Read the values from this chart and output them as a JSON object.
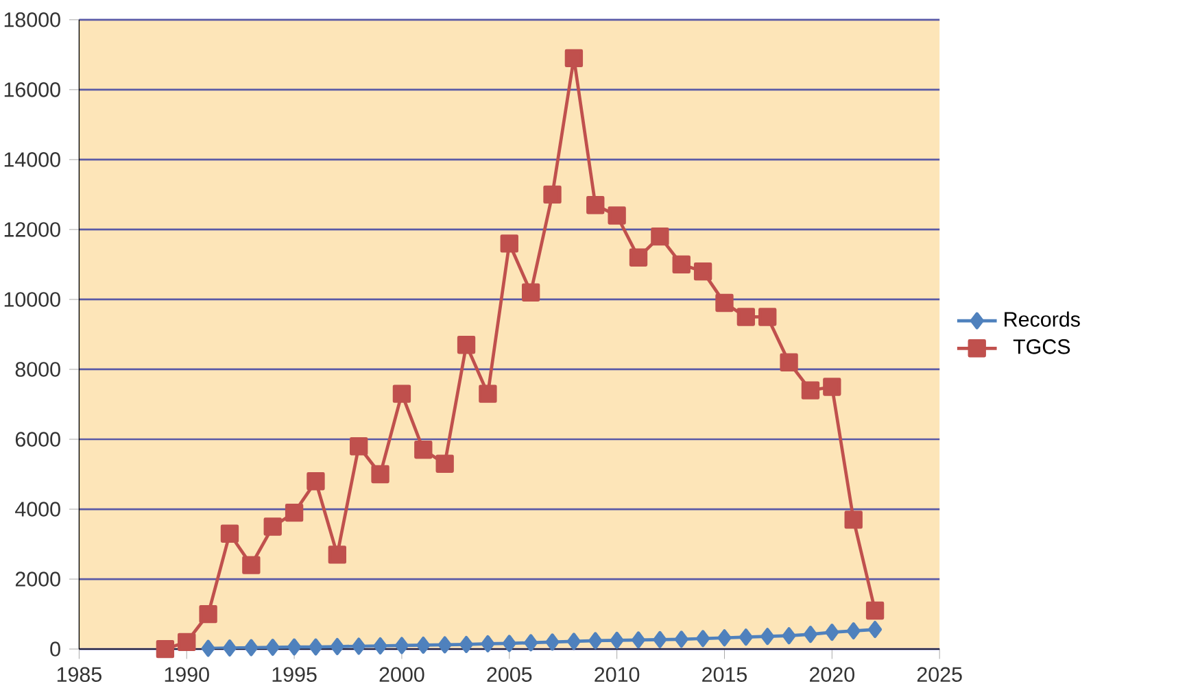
{
  "chart_data": {
    "type": "line",
    "xlim": [
      1985,
      2025
    ],
    "xticks": [
      1985,
      1990,
      1995,
      2000,
      2005,
      2010,
      2015,
      2020,
      2025
    ],
    "ylim": [
      0,
      18000
    ],
    "yticks": [
      0,
      2000,
      4000,
      6000,
      8000,
      10000,
      12000,
      14000,
      16000,
      18000
    ],
    "grid": "y",
    "legend": "right",
    "series": [
      {
        "name": "Records",
        "color": "#4f81bd",
        "marker": "diamond",
        "x": [
          1991,
          1992,
          1993,
          1994,
          1995,
          1996,
          1997,
          1998,
          1999,
          2000,
          2001,
          2002,
          2003,
          2004,
          2005,
          2006,
          2007,
          2008,
          2009,
          2010,
          2011,
          2012,
          2013,
          2014,
          2015,
          2016,
          2017,
          2018,
          2019,
          2020,
          2021,
          2022
        ],
        "values": [
          20,
          30,
          40,
          50,
          60,
          60,
          70,
          80,
          90,
          100,
          110,
          120,
          130,
          150,
          160,
          180,
          200,
          220,
          240,
          250,
          260,
          270,
          280,
          300,
          320,
          340,
          360,
          380,
          420,
          480,
          520,
          560
        ]
      },
      {
        "name": "TGCS",
        "color": "#c0504d",
        "marker": "square",
        "x": [
          1989,
          1990,
          1991,
          1992,
          1993,
          1994,
          1995,
          1996,
          1997,
          1998,
          1999,
          2000,
          2001,
          2002,
          2003,
          2004,
          2005,
          2006,
          2007,
          2008,
          2009,
          2010,
          2011,
          2012,
          2013,
          2014,
          2015,
          2016,
          2017,
          2018,
          2019,
          2020,
          2021,
          2022
        ],
        "values": [
          0,
          200,
          1000,
          3300,
          2400,
          3500,
          3900,
          4800,
          2700,
          5800,
          5000,
          7300,
          5700,
          5300,
          8700,
          7300,
          11600,
          10200,
          13000,
          16900,
          12700,
          12400,
          11200,
          11800,
          11000,
          10800,
          9900,
          9500,
          9500,
          8200,
          7400,
          7500,
          3700,
          1100
        ]
      }
    ]
  }
}
